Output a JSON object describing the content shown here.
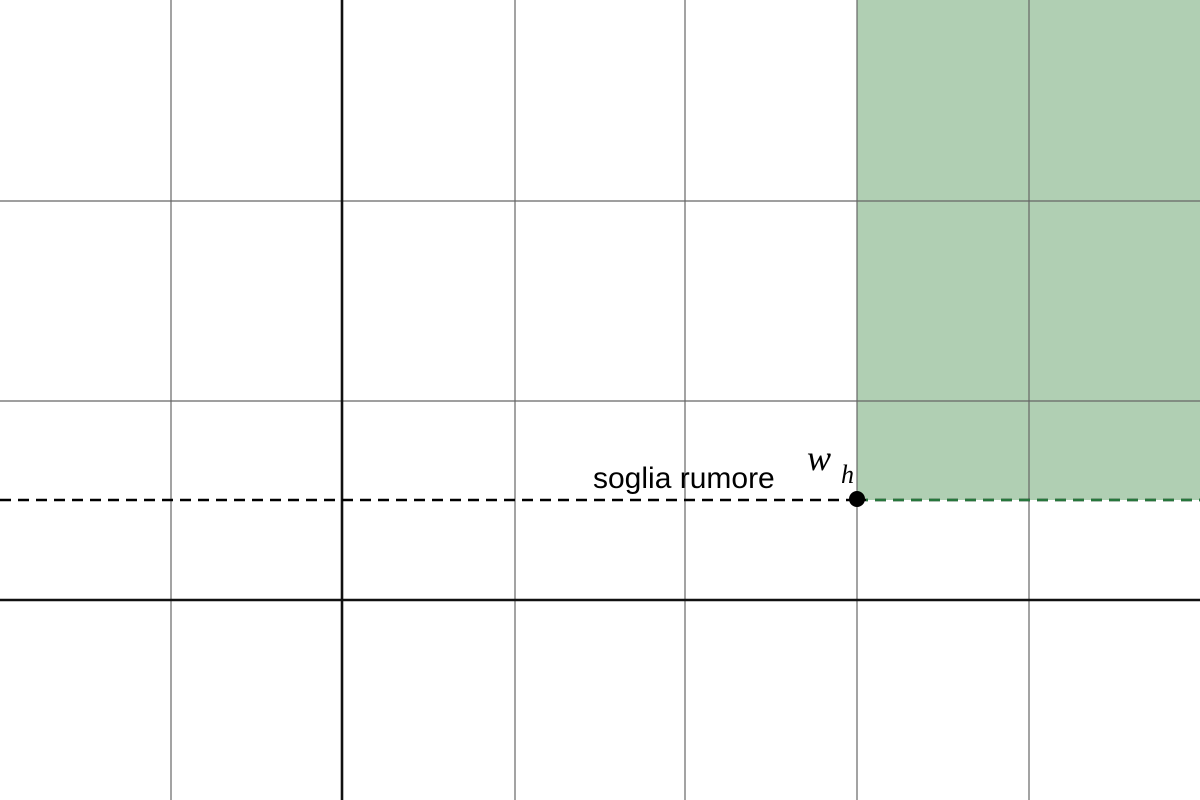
{
  "diagram": {
    "threshold_label": "soglia rumore",
    "point_label": "w",
    "point_subscript": "h",
    "colors": {
      "region_fill": "#b0cfb3",
      "grid": "#666666",
      "axis": "#111111",
      "threshold": "#000000",
      "point": "#000000",
      "green_dash": "#2e8b47"
    }
  }
}
